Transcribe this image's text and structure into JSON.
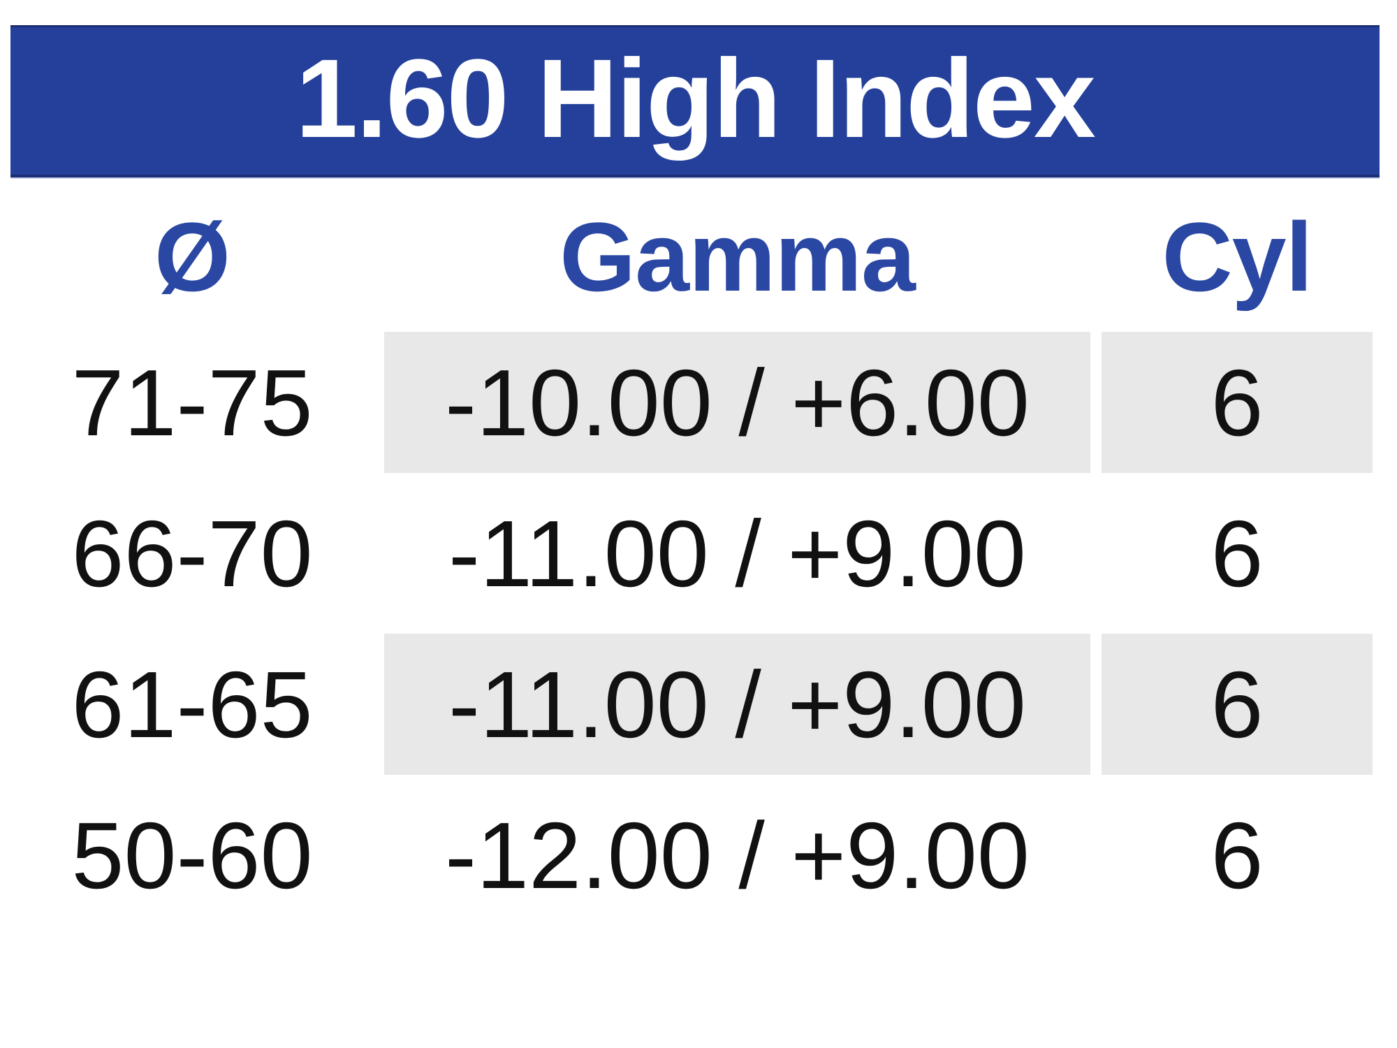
{
  "title": "1.60 High Index",
  "columns": [
    {
      "key": "diameter",
      "label": "Ø"
    },
    {
      "key": "gamma",
      "label": "Gamma"
    },
    {
      "key": "cyl",
      "label": "Cyl"
    }
  ],
  "rows": [
    {
      "diameter": "71-75",
      "gamma": "-10.00 / +6.00",
      "cyl": "6"
    },
    {
      "diameter": "66-70",
      "gamma": "-11.00 / +9.00",
      "cyl": "6"
    },
    {
      "diameter": "61-65",
      "gamma": "-11.00 / +9.00",
      "cyl": "6"
    },
    {
      "diameter": "50-60",
      "gamma": "-12.00 / +9.00",
      "cyl": "6"
    }
  ],
  "colors": {
    "banner_blue": "#24409A",
    "banner_border": "#1B2E74",
    "banner_underline": "#CDD3EE",
    "header_text_blue": "#2A47A3",
    "row_shade_gray": "#E8E8E8",
    "data_text": "#111111"
  }
}
